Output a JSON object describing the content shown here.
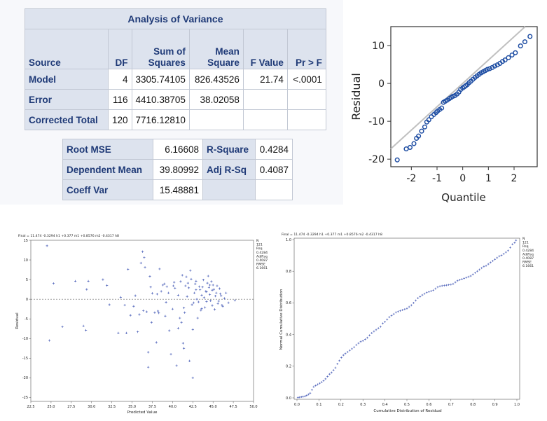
{
  "anova": {
    "title": "Analysis of Variance",
    "headers": [
      "Source",
      "DF",
      "Sum of\nSquares",
      "Mean\nSquare",
      "F Value",
      "Pr > F"
    ],
    "rows": [
      {
        "source": "Model",
        "df": "4",
        "ss": "3305.74105",
        "ms": "826.43526",
        "f": "21.74",
        "p": "<.0001"
      },
      {
        "source": "Error",
        "df": "116",
        "ss": "4410.38705",
        "ms": "38.02058",
        "f": "",
        "p": ""
      },
      {
        "source": "Corrected Total",
        "df": "120",
        "ss": "7716.12810",
        "ms": "",
        "f": "",
        "p": ""
      }
    ]
  },
  "fit_stats": {
    "rows": [
      {
        "label1": "Root MSE",
        "value1": "6.16608",
        "label2": "R-Square",
        "value2": "0.4284"
      },
      {
        "label1": "Dependent Mean",
        "value1": "39.80992",
        "label2": "Adj R-Sq",
        "value2": "0.4087"
      },
      {
        "label1": "Coeff Var",
        "value1": "15.48881",
        "label2": "",
        "value2": ""
      }
    ]
  },
  "colors": {
    "header_bg": "#dde3ee",
    "header_text": "#1f3a77",
    "marker_blue": "#1f4ea3",
    "small_marker": "#4a5fb8",
    "ref_line": "#c0c0c0"
  },
  "qq_plot": {
    "ylabel": "Residual",
    "xlabel": "Quantile",
    "xticks": [
      "-2",
      "-1",
      "0",
      "1",
      "2"
    ],
    "yticks": [
      "10",
      "0",
      "-10",
      "-20"
    ]
  },
  "header_text": "Final = 11.474 -0.3294 h1 +0.377 m1 +0.8576 m2 -0.4317 h8",
  "stats_box": [
    "N",
    "121",
    "Rsq",
    "0.4284",
    "AdjRsq",
    "0.4087",
    "RMSE",
    "6.1661"
  ],
  "chart_data": [
    {
      "type": "scatter",
      "title": "",
      "xlabel": "Quantile",
      "ylabel": "Residual",
      "xlim": [
        -2.8,
        2.9
      ],
      "ylim": [
        -22,
        15
      ],
      "xticks": [
        -2,
        -1,
        0,
        1,
        2
      ],
      "yticks": [
        -20,
        -10,
        0,
        10
      ],
      "reference_line": {
        "slope": 6.1661,
        "intercept": 0
      },
      "points": [
        [
          -2.55,
          -20.2
        ],
        [
          -2.2,
          -17.3
        ],
        [
          -2.05,
          -16.9
        ],
        [
          -1.9,
          -15.9
        ],
        [
          -1.8,
          -14.5
        ],
        [
          -1.72,
          -13.9
        ],
        [
          -1.6,
          -12.6
        ],
        [
          -1.48,
          -11.5
        ],
        [
          -1.4,
          -10.2
        ],
        [
          -1.32,
          -9.6
        ],
        [
          -1.22,
          -8.8
        ],
        [
          -1.12,
          -8.2
        ],
        [
          -1.04,
          -7.7
        ],
        [
          -0.98,
          -7.3
        ],
        [
          -0.9,
          -6.9
        ],
        [
          -0.82,
          -6.5
        ],
        [
          -0.75,
          -5.0
        ],
        [
          -0.68,
          -4.7
        ],
        [
          -0.6,
          -4.4
        ],
        [
          -0.52,
          -4.0
        ],
        [
          -0.45,
          -3.7
        ],
        [
          -0.38,
          -3.4
        ],
        [
          -0.3,
          -3.2
        ],
        [
          -0.22,
          -2.8
        ],
        [
          -0.15,
          -2.3
        ],
        [
          -0.08,
          -1.6
        ],
        [
          0.0,
          -1.2
        ],
        [
          0.06,
          -0.9
        ],
        [
          0.12,
          -0.6
        ],
        [
          0.18,
          -0.3
        ],
        [
          0.25,
          0.2
        ],
        [
          0.32,
          0.6
        ],
        [
          0.4,
          1.1
        ],
        [
          0.48,
          1.6
        ],
        [
          0.56,
          2.0
        ],
        [
          0.64,
          2.4
        ],
        [
          0.72,
          2.8
        ],
        [
          0.8,
          3.1
        ],
        [
          0.88,
          3.4
        ],
        [
          0.96,
          3.7
        ],
        [
          1.05,
          3.9
        ],
        [
          1.15,
          4.2
        ],
        [
          1.25,
          4.6
        ],
        [
          1.35,
          4.9
        ],
        [
          1.45,
          5.3
        ],
        [
          1.55,
          5.8
        ],
        [
          1.65,
          6.2
        ],
        [
          1.78,
          6.8
        ],
        [
          1.92,
          7.5
        ],
        [
          2.05,
          8.1
        ],
        [
          2.25,
          9.9
        ],
        [
          2.42,
          11.0
        ],
        [
          2.62,
          12.4
        ]
      ]
    },
    {
      "type": "scatter",
      "title": "Final = 11.474 -0.3294 h1 +0.377 m1 +0.8576 m2 -0.4317 h8",
      "xlabel": "Predicted Value",
      "ylabel": "Residual",
      "xlim": [
        22.5,
        50.0
      ],
      "ylim": [
        -26,
        15
      ],
      "xticks": [
        22.5,
        25.0,
        27.5,
        30.0,
        32.5,
        35.0,
        37.5,
        40.0,
        42.5,
        45.0,
        47.5,
        50.0
      ],
      "yticks": [
        15,
        10,
        5,
        0,
        -5,
        -10,
        -15,
        -20,
        -25
      ],
      "points": [
        [
          24.5,
          13.6
        ],
        [
          24.8,
          -10.5
        ],
        [
          25.3,
          4.0
        ],
        [
          26.4,
          -7.0
        ],
        [
          28.0,
          4.6
        ],
        [
          29.0,
          -6.8
        ],
        [
          29.3,
          -7.9
        ],
        [
          29.4,
          2.5
        ],
        [
          29.6,
          4.6
        ],
        [
          31.4,
          5.0
        ],
        [
          31.9,
          3.5
        ],
        [
          32.2,
          -1.4
        ],
        [
          33.3,
          -8.6
        ],
        [
          33.6,
          0.5
        ],
        [
          34.1,
          -1.5
        ],
        [
          34.3,
          -8.6
        ],
        [
          34.5,
          7.6
        ],
        [
          35.2,
          -1.8
        ],
        [
          35.7,
          -8.3
        ],
        [
          35.9,
          -3.9
        ],
        [
          36.1,
          9.2
        ],
        [
          36.3,
          12.1
        ],
        [
          36.5,
          10.6
        ],
        [
          36.6,
          8.1
        ],
        [
          36.8,
          -3.2
        ],
        [
          37.0,
          -13.5
        ],
        [
          37.0,
          -17.3
        ],
        [
          37.2,
          5.8
        ],
        [
          37.3,
          3.1
        ],
        [
          37.5,
          1.5
        ],
        [
          37.8,
          -3.4
        ],
        [
          38.0,
          -11.0
        ],
        [
          38.1,
          1.3
        ],
        [
          38.2,
          -3.0
        ],
        [
          38.4,
          7.7
        ],
        [
          38.6,
          2.0
        ],
        [
          38.8,
          3.6
        ],
        [
          39.0,
          3.9
        ],
        [
          39.1,
          -4.3
        ],
        [
          39.3,
          3.2
        ],
        [
          39.5,
          1.6
        ],
        [
          39.6,
          -8.0
        ],
        [
          39.8,
          -14.0
        ],
        [
          40.0,
          -2.5
        ],
        [
          40.1,
          3.4
        ],
        [
          40.2,
          4.3
        ],
        [
          40.3,
          2.8
        ],
        [
          40.5,
          -16.9
        ],
        [
          40.7,
          1.0
        ],
        [
          40.9,
          -4.8
        ],
        [
          41.0,
          4.5
        ],
        [
          41.1,
          -5.9
        ],
        [
          41.2,
          6.1
        ],
        [
          41.3,
          -11.2
        ],
        [
          41.4,
          -12.5
        ],
        [
          41.5,
          -3.4
        ],
        [
          41.6,
          3.4
        ],
        [
          41.7,
          5.7
        ],
        [
          41.8,
          0.7
        ],
        [
          41.9,
          4.1
        ],
        [
          42.0,
          2.9
        ],
        [
          42.1,
          -15.7
        ],
        [
          42.2,
          7.3
        ],
        [
          42.3,
          5.1
        ],
        [
          42.4,
          -1.4
        ],
        [
          42.5,
          -20.0
        ],
        [
          42.5,
          -7.7
        ],
        [
          42.6,
          -0.9
        ],
        [
          42.7,
          1.6
        ],
        [
          42.8,
          3.9
        ],
        [
          42.9,
          4.6
        ],
        [
          43.0,
          0.0
        ],
        [
          43.1,
          -4.8
        ],
        [
          43.2,
          -0.7
        ],
        [
          43.3,
          3.2
        ],
        [
          43.4,
          2.4
        ],
        [
          43.5,
          -2.8
        ],
        [
          43.6,
          1.0
        ],
        [
          43.7,
          3.1
        ],
        [
          43.8,
          4.9
        ],
        [
          43.9,
          0.4
        ],
        [
          44.0,
          -2.1
        ],
        [
          44.1,
          2.0
        ],
        [
          44.2,
          -0.6
        ],
        [
          44.3,
          4.1
        ],
        [
          44.4,
          5.9
        ],
        [
          44.5,
          3.0
        ],
        [
          44.6,
          1.2
        ],
        [
          44.7,
          -0.4
        ],
        [
          44.8,
          4.5
        ],
        [
          44.9,
          -1.6
        ],
        [
          45.0,
          3.6
        ],
        [
          45.1,
          2.5
        ],
        [
          45.2,
          -2.6
        ],
        [
          45.3,
          0.8
        ],
        [
          45.4,
          1.6
        ],
        [
          45.5,
          3.4
        ],
        [
          45.6,
          -1.1
        ],
        [
          45.7,
          -0.5
        ],
        [
          45.8,
          2.7
        ],
        [
          45.9,
          1.4
        ],
        [
          46.0,
          0.9
        ],
        [
          46.2,
          -1.8
        ],
        [
          46.4,
          0.2
        ],
        [
          46.6,
          1.6
        ],
        [
          46.9,
          -0.9
        ],
        [
          44.6,
          3.6
        ],
        [
          44.2,
          1.9
        ],
        [
          43.6,
          -2.4
        ],
        [
          42.9,
          2.4
        ],
        [
          41.4,
          -2.2
        ],
        [
          40.7,
          -7.4
        ],
        [
          39.2,
          -0.8
        ],
        [
          38.3,
          -3.5
        ],
        [
          37.4,
          -5.9
        ],
        [
          36.4,
          -2.9
        ],
        [
          35.4,
          0.9
        ],
        [
          34.8,
          -4.1
        ],
        [
          44.9,
          2.3
        ],
        [
          46.1,
          -1.5
        ],
        [
          47.7,
          -0.3
        ]
      ]
    },
    {
      "type": "scatter",
      "title": "Final = 11.474 -0.3294 h1 +0.377 m1 +0.8576 m2 -0.4317 h8",
      "xlabel": "Cumulative Distribution of Residual",
      "ylabel": "Normal Cumulative Distribution",
      "xlim": [
        0.0,
        1.0
      ],
      "ylim": [
        0.0,
        1.0
      ],
      "xticks": [
        0.0,
        0.1,
        0.2,
        0.3,
        0.4,
        0.5,
        0.6,
        0.7,
        0.8,
        0.9,
        1.0
      ],
      "yticks": [
        0.0,
        0.2,
        0.4,
        0.6,
        0.8,
        1.0
      ],
      "points": [
        [
          0.004,
          0.002
        ],
        [
          0.012,
          0.004
        ],
        [
          0.02,
          0.006
        ],
        [
          0.028,
          0.008
        ],
        [
          0.036,
          0.01
        ],
        [
          0.044,
          0.015
        ],
        [
          0.052,
          0.022
        ],
        [
          0.06,
          0.03
        ],
        [
          0.068,
          0.05
        ],
        [
          0.076,
          0.07
        ],
        [
          0.085,
          0.078
        ],
        [
          0.094,
          0.085
        ],
        [
          0.103,
          0.092
        ],
        [
          0.112,
          0.1
        ],
        [
          0.121,
          0.108
        ],
        [
          0.13,
          0.12
        ],
        [
          0.139,
          0.135
        ],
        [
          0.148,
          0.15
        ],
        [
          0.157,
          0.16
        ],
        [
          0.166,
          0.175
        ],
        [
          0.175,
          0.19
        ],
        [
          0.184,
          0.215
        ],
        [
          0.193,
          0.235
        ],
        [
          0.202,
          0.255
        ],
        [
          0.211,
          0.27
        ],
        [
          0.22,
          0.28
        ],
        [
          0.23,
          0.29
        ],
        [
          0.24,
          0.3
        ],
        [
          0.25,
          0.31
        ],
        [
          0.26,
          0.32
        ],
        [
          0.27,
          0.335
        ],
        [
          0.28,
          0.345
        ],
        [
          0.29,
          0.355
        ],
        [
          0.3,
          0.36
        ],
        [
          0.31,
          0.37
        ],
        [
          0.32,
          0.38
        ],
        [
          0.33,
          0.395
        ],
        [
          0.34,
          0.41
        ],
        [
          0.35,
          0.42
        ],
        [
          0.36,
          0.43
        ],
        [
          0.37,
          0.44
        ],
        [
          0.38,
          0.45
        ],
        [
          0.39,
          0.47
        ],
        [
          0.4,
          0.48
        ],
        [
          0.41,
          0.495
        ],
        [
          0.42,
          0.51
        ],
        [
          0.43,
          0.52
        ],
        [
          0.44,
          0.53
        ],
        [
          0.45,
          0.54
        ],
        [
          0.46,
          0.545
        ],
        [
          0.47,
          0.55
        ],
        [
          0.48,
          0.555
        ],
        [
          0.49,
          0.56
        ],
        [
          0.5,
          0.565
        ],
        [
          0.51,
          0.575
        ],
        [
          0.52,
          0.585
        ],
        [
          0.53,
          0.6
        ],
        [
          0.54,
          0.615
        ],
        [
          0.55,
          0.63
        ],
        [
          0.56,
          0.64
        ],
        [
          0.57,
          0.65
        ],
        [
          0.58,
          0.658
        ],
        [
          0.59,
          0.665
        ],
        [
          0.6,
          0.67
        ],
        [
          0.61,
          0.675
        ],
        [
          0.62,
          0.68
        ],
        [
          0.63,
          0.69
        ],
        [
          0.64,
          0.7
        ],
        [
          0.65,
          0.705
        ],
        [
          0.66,
          0.708
        ],
        [
          0.67,
          0.71
        ],
        [
          0.68,
          0.712
        ],
        [
          0.69,
          0.714
        ],
        [
          0.7,
          0.716
        ],
        [
          0.71,
          0.72
        ],
        [
          0.72,
          0.73
        ],
        [
          0.73,
          0.74
        ],
        [
          0.74,
          0.745
        ],
        [
          0.75,
          0.75
        ],
        [
          0.76,
          0.755
        ],
        [
          0.77,
          0.76
        ],
        [
          0.78,
          0.765
        ],
        [
          0.79,
          0.77
        ],
        [
          0.8,
          0.78
        ],
        [
          0.81,
          0.79
        ],
        [
          0.82,
          0.8
        ],
        [
          0.83,
          0.81
        ],
        [
          0.84,
          0.82
        ],
        [
          0.85,
          0.83
        ],
        [
          0.86,
          0.835
        ],
        [
          0.87,
          0.845
        ],
        [
          0.88,
          0.855
        ],
        [
          0.89,
          0.865
        ],
        [
          0.9,
          0.875
        ],
        [
          0.91,
          0.885
        ],
        [
          0.92,
          0.895
        ],
        [
          0.93,
          0.9
        ],
        [
          0.94,
          0.91
        ],
        [
          0.95,
          0.92
        ],
        [
          0.96,
          0.93
        ],
        [
          0.97,
          0.95
        ],
        [
          0.98,
          0.97
        ],
        [
          0.99,
          0.98
        ],
        [
          0.996,
          0.995
        ]
      ]
    }
  ]
}
